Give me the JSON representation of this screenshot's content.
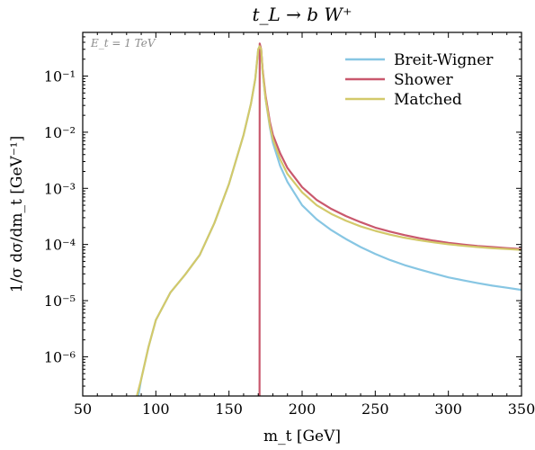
{
  "chart_data": {
    "type": "line",
    "title": "t_L → b W⁺",
    "annotation": "E_t = 1 TeV",
    "xlabel": "m_t [GeV]",
    "ylabel": "1/σ dσ/dm_t [GeV⁻¹]",
    "xlim": [
      50,
      350
    ],
    "ylim": [
      2e-07,
      0.6
    ],
    "yscale": "log",
    "grid": false,
    "legend_position": "top-right",
    "x_ticks": [
      {
        "value": 50,
        "label": "50"
      },
      {
        "value": 100,
        "label": "100"
      },
      {
        "value": 150,
        "label": "150"
      },
      {
        "value": 200,
        "label": "200"
      },
      {
        "value": 250,
        "label": "250"
      },
      {
        "value": 300,
        "label": "300"
      },
      {
        "value": 350,
        "label": "350"
      }
    ],
    "y_ticks": [
      {
        "value": 1e-06,
        "label": "10⁻⁶"
      },
      {
        "value": 1e-05,
        "label": "10⁻⁵"
      },
      {
        "value": 0.0001,
        "label": "10⁻⁴"
      },
      {
        "value": 0.001,
        "label": "10⁻³"
      },
      {
        "value": 0.01,
        "label": "10⁻²"
      },
      {
        "value": 0.1,
        "label": "10⁻¹"
      }
    ],
    "series": [
      {
        "name": "Breit-Wigner",
        "color": "#87c6e3",
        "x": [
          88,
          90,
          95,
          100,
          110,
          120,
          130,
          140,
          150,
          160,
          165,
          168,
          170,
          171,
          172,
          173,
          175,
          178,
          180,
          185,
          190,
          200,
          210,
          220,
          230,
          240,
          250,
          260,
          270,
          280,
          290,
          300,
          310,
          320,
          330,
          340,
          350
        ],
        "y": [
          2e-07,
          4e-07,
          1.5e-06,
          4.5e-06,
          1.4e-05,
          2.9e-05,
          6.5e-05,
          0.00024,
          0.0012,
          0.009,
          0.032,
          0.09,
          0.3,
          0.34,
          0.3,
          0.12,
          0.04,
          0.012,
          0.0065,
          0.0025,
          0.0013,
          0.0005,
          0.00028,
          0.00018,
          0.000125,
          9e-05,
          6.8e-05,
          5.3e-05,
          4.3e-05,
          3.6e-05,
          3.05e-05,
          2.6e-05,
          2.3e-05,
          2.05e-05,
          1.85e-05,
          1.7e-05,
          1.55e-05
        ]
      },
      {
        "name": "Shower",
        "color": "#c9586d",
        "x": [
          170.9,
          171,
          172,
          173,
          175,
          178,
          180,
          185,
          190,
          200,
          210,
          220,
          230,
          240,
          250,
          260,
          270,
          280,
          290,
          300,
          310,
          320,
          330,
          340,
          350
        ],
        "y": [
          2e-07,
          0.38,
          0.3,
          0.13,
          0.045,
          0.015,
          0.009,
          0.0042,
          0.0023,
          0.00105,
          0.00062,
          0.00043,
          0.00032,
          0.00025,
          0.0002,
          0.00017,
          0.000147,
          0.00013,
          0.000117,
          0.000107,
          0.0001,
          9.4e-05,
          9e-05,
          8.6e-05,
          8.3e-05
        ]
      },
      {
        "name": "Matched",
        "color": "#d3c96a",
        "x": [
          87,
          90,
          95,
          100,
          110,
          120,
          130,
          140,
          150,
          160,
          165,
          168,
          170,
          171,
          172,
          173,
          175,
          178,
          180,
          185,
          190,
          200,
          210,
          220,
          230,
          240,
          250,
          260,
          270,
          280,
          290,
          300,
          310,
          320,
          330,
          340,
          350
        ],
        "y": [
          2e-07,
          4e-07,
          1.5e-06,
          4.5e-06,
          1.4e-05,
          2.9e-05,
          6.5e-05,
          0.00024,
          0.0012,
          0.009,
          0.032,
          0.09,
          0.3,
          0.34,
          0.3,
          0.12,
          0.04,
          0.013,
          0.0075,
          0.0033,
          0.0018,
          0.00085,
          0.0005,
          0.00035,
          0.000265,
          0.00021,
          0.000175,
          0.00015,
          0.000132,
          0.000119,
          0.000109,
          0.000101,
          9.5e-05,
          9e-05,
          8.6e-05,
          8.3e-05,
          8e-05
        ]
      }
    ]
  }
}
